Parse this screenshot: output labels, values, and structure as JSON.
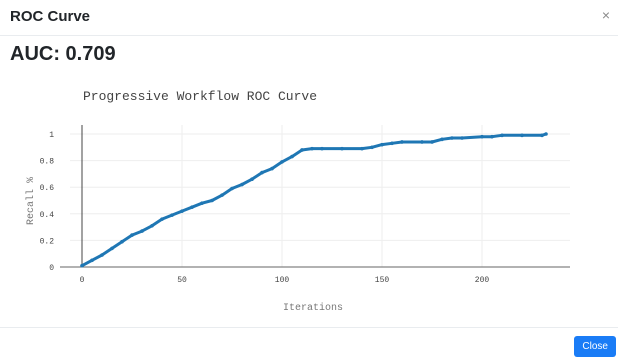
{
  "modal": {
    "title": "ROC Curve",
    "close_symbol": "×",
    "auc_text": "AUC: 0.709",
    "close_button_label": "Close",
    "accent_color": "#1a7cf6"
  },
  "chart_data": {
    "type": "line",
    "title": "Progressive Workflow ROC Curve",
    "xlabel": "Iterations",
    "ylabel": "Recall %",
    "xlim": [
      0,
      245
    ],
    "ylim": [
      0,
      1.0
    ],
    "x_ticks": [
      "0",
      "50",
      "100",
      "150",
      "200"
    ],
    "y_ticks": [
      "0",
      "0.2",
      "0.4",
      "0.6",
      "0.8",
      "1"
    ],
    "grid": true,
    "line_color": "#1f77b4",
    "series": [
      {
        "x": [
          0,
          5,
          10,
          15,
          20,
          25,
          30,
          35,
          40,
          45,
          50,
          55,
          60,
          65,
          70,
          75,
          80,
          85,
          90,
          95,
          100,
          105,
          110,
          115,
          120,
          130,
          140,
          145,
          150,
          155,
          160,
          170,
          175,
          180,
          185,
          190,
          200,
          205,
          210,
          220,
          230,
          232
        ],
        "y": [
          0.01,
          0.05,
          0.09,
          0.14,
          0.19,
          0.24,
          0.27,
          0.31,
          0.36,
          0.39,
          0.42,
          0.45,
          0.48,
          0.5,
          0.54,
          0.59,
          0.62,
          0.66,
          0.71,
          0.74,
          0.79,
          0.83,
          0.88,
          0.89,
          0.89,
          0.89,
          0.89,
          0.9,
          0.92,
          0.93,
          0.94,
          0.94,
          0.94,
          0.96,
          0.97,
          0.97,
          0.98,
          0.98,
          0.99,
          0.99,
          0.99,
          1.0
        ]
      }
    ]
  }
}
